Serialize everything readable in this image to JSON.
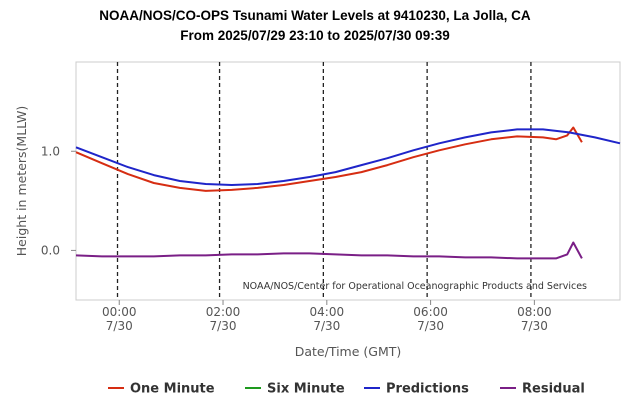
{
  "chart_data": {
    "type": "line",
    "title": "NOAA/NOS/CO-OPS Tsunami Water Levels at 9410230, La Jolla, CA",
    "subtitle": "From 2025/07/29 23:10 to 2025/07/30 09:39",
    "xlabel": "Date/Time (GMT)",
    "ylabel": "Height in meters(MLLW)",
    "xlim": [
      "2025/07/29 23:10",
      "2025/07/30 09:39"
    ],
    "ylim": [
      -0.5,
      1.9
    ],
    "yticks": [
      {
        "value": 0.0,
        "label": "0.0"
      },
      {
        "value": 1.0,
        "label": "1.0"
      }
    ],
    "xticks": [
      {
        "value": "2025/07/30 00:00",
        "label1": "00:00",
        "label2": "7/30"
      },
      {
        "value": "2025/07/30 02:00",
        "label1": "02:00",
        "label2": "7/30"
      },
      {
        "value": "2025/07/30 04:00",
        "label1": "04:00",
        "label2": "7/30"
      },
      {
        "value": "2025/07/30 06:00",
        "label1": "06:00",
        "label2": "7/30"
      },
      {
        "value": "2025/07/30 08:00",
        "label1": "08:00",
        "label2": "7/30"
      }
    ],
    "vlines": [
      "2025/07/29 23:58",
      "2025/07/30 01:56",
      "2025/07/30 03:56",
      "2025/07/30 05:56",
      "2025/07/30 07:56"
    ],
    "grid": false,
    "legend": "bottom",
    "annotation": "NOAA/NOS/Center for Operational Oceanographic Products and Services",
    "series": [
      {
        "name": "One Minute",
        "color": "#d62d12",
        "x": [
          "2025/07/29 23:10",
          "2025/07/29 23:40",
          "2025/07/30 00:10",
          "2025/07/30 00:40",
          "2025/07/30 01:10",
          "2025/07/30 01:40",
          "2025/07/30 02:10",
          "2025/07/30 02:40",
          "2025/07/30 03:10",
          "2025/07/30 03:40",
          "2025/07/30 04:10",
          "2025/07/30 04:40",
          "2025/07/30 05:10",
          "2025/07/30 05:40",
          "2025/07/30 06:10",
          "2025/07/30 06:40",
          "2025/07/30 07:10",
          "2025/07/30 07:40",
          "2025/07/30 08:10",
          "2025/07/30 08:25",
          "2025/07/30 08:38",
          "2025/07/30 08:45",
          "2025/07/30 08:55"
        ],
        "values": [
          0.99,
          0.88,
          0.77,
          0.68,
          0.63,
          0.6,
          0.61,
          0.63,
          0.66,
          0.7,
          0.74,
          0.79,
          0.86,
          0.94,
          1.01,
          1.07,
          1.12,
          1.15,
          1.14,
          1.12,
          1.16,
          1.24,
          1.09
        ]
      },
      {
        "name": "Six Minute",
        "color": "#1e9a1e",
        "x": [],
        "values": []
      },
      {
        "name": "Predictions",
        "color": "#1f25c9",
        "x": [
          "2025/07/29 23:10",
          "2025/07/29 23:40",
          "2025/07/30 00:10",
          "2025/07/30 00:40",
          "2025/07/30 01:10",
          "2025/07/30 01:40",
          "2025/07/30 02:10",
          "2025/07/30 02:40",
          "2025/07/30 03:10",
          "2025/07/30 03:40",
          "2025/07/30 04:10",
          "2025/07/30 04:40",
          "2025/07/30 05:10",
          "2025/07/30 05:40",
          "2025/07/30 06:10",
          "2025/07/30 06:40",
          "2025/07/30 07:10",
          "2025/07/30 07:40",
          "2025/07/30 08:10",
          "2025/07/30 08:40",
          "2025/07/30 09:10",
          "2025/07/30 09:39"
        ],
        "values": [
          1.04,
          0.94,
          0.84,
          0.76,
          0.7,
          0.67,
          0.66,
          0.67,
          0.7,
          0.74,
          0.79,
          0.86,
          0.93,
          1.01,
          1.08,
          1.14,
          1.19,
          1.22,
          1.22,
          1.19,
          1.14,
          1.08
        ]
      },
      {
        "name": "Residual",
        "color": "#7a1f86",
        "x": [
          "2025/07/29 23:10",
          "2025/07/29 23:40",
          "2025/07/30 00:10",
          "2025/07/30 00:40",
          "2025/07/30 01:10",
          "2025/07/30 01:40",
          "2025/07/30 02:10",
          "2025/07/30 02:40",
          "2025/07/30 03:10",
          "2025/07/30 03:40",
          "2025/07/30 04:10",
          "2025/07/30 04:40",
          "2025/07/30 05:10",
          "2025/07/30 05:40",
          "2025/07/30 06:10",
          "2025/07/30 06:40",
          "2025/07/30 07:10",
          "2025/07/30 07:40",
          "2025/07/30 08:10",
          "2025/07/30 08:25",
          "2025/07/30 08:38",
          "2025/07/30 08:45",
          "2025/07/30 08:55"
        ],
        "values": [
          -0.05,
          -0.06,
          -0.06,
          -0.06,
          -0.05,
          -0.05,
          -0.04,
          -0.04,
          -0.03,
          -0.03,
          -0.04,
          -0.05,
          -0.05,
          -0.06,
          -0.06,
          -0.07,
          -0.07,
          -0.08,
          -0.08,
          -0.08,
          -0.04,
          0.08,
          -0.08
        ]
      }
    ]
  }
}
